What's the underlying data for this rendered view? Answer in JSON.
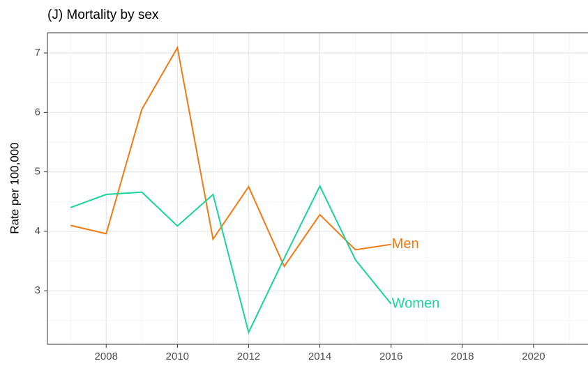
{
  "chart_data": {
    "type": "line",
    "title": "(J) Mortality by sex",
    "y_label": "Rate per 100,000",
    "x": [
      2007,
      2008,
      2009,
      2010,
      2011,
      2012,
      2013,
      2014,
      2015,
      2016
    ],
    "series": [
      {
        "name": "Men",
        "color": "#f37a12",
        "values": [
          4.1,
          3.96,
          6.05,
          7.09,
          3.87,
          4.75,
          3.41,
          4.28,
          3.69,
          3.78
        ]
      },
      {
        "name": "Women",
        "color": "#19d49b",
        "values": [
          4.4,
          4.62,
          4.66,
          4.09,
          4.62,
          2.3,
          3.55,
          4.76,
          3.52,
          2.78
        ]
      }
    ],
    "xlim": [
      2006.35,
      2021.53
    ],
    "xticks": [
      2008,
      2010,
      2012,
      2014,
      2016,
      2018,
      2020
    ],
    "ylim": [
      2.1,
      7.34
    ],
    "yticks": [
      3,
      4,
      5,
      6,
      7
    ],
    "grid": true
  }
}
